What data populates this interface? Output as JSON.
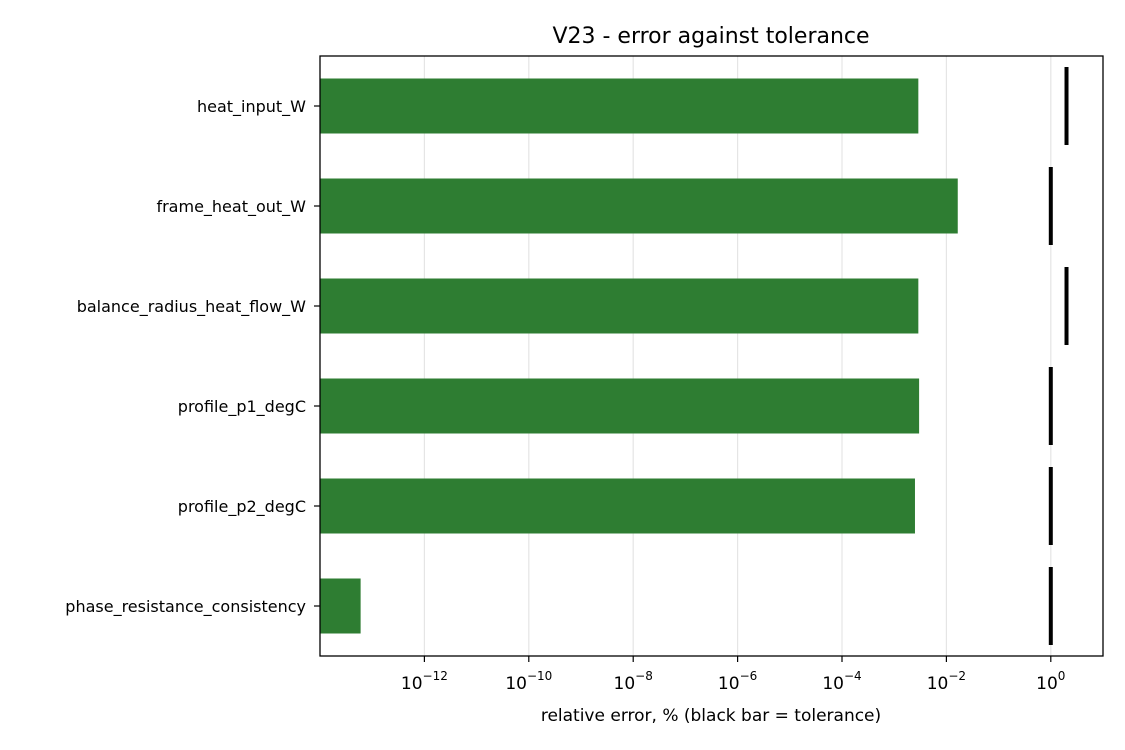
{
  "chart_data": {
    "type": "bar",
    "orientation": "horizontal",
    "title": "V23 - error against tolerance",
    "xlabel": "relative error, % (black bar = tolerance)",
    "ylabel": "",
    "x_scale": "log",
    "xlim": [
      1e-14,
      10
    ],
    "grid": "x",
    "categories": [
      "heat_input_W",
      "frame_heat_out_W",
      "balance_radius_heat_flow_W",
      "profile_p1_degC",
      "profile_p2_degC",
      "phase_resistance_consistency"
    ],
    "series": [
      {
        "values": [
          0.0029,
          0.0165,
          0.0029,
          0.003,
          0.0025,
          6e-14
        ]
      }
    ],
    "tolerance": [
      2.0,
      1.0,
      2.0,
      1.0,
      1.0,
      1.0
    ],
    "x_ticks": [
      {
        "base": "10",
        "exp": "−12",
        "value": 1e-12
      },
      {
        "base": "10",
        "exp": "−10",
        "value": 1e-10
      },
      {
        "base": "10",
        "exp": "−8",
        "value": 1e-08
      },
      {
        "base": "10",
        "exp": "−6",
        "value": 1e-06
      },
      {
        "base": "10",
        "exp": "−4",
        "value": 0.0001
      },
      {
        "base": "10",
        "exp": "−2",
        "value": 0.01
      },
      {
        "base": "10",
        "exp": "0",
        "value": 1
      }
    ],
    "colors": {
      "bar": "#2e7d32",
      "tolerance": "#000000",
      "grid": "#e5e5e5"
    }
  }
}
